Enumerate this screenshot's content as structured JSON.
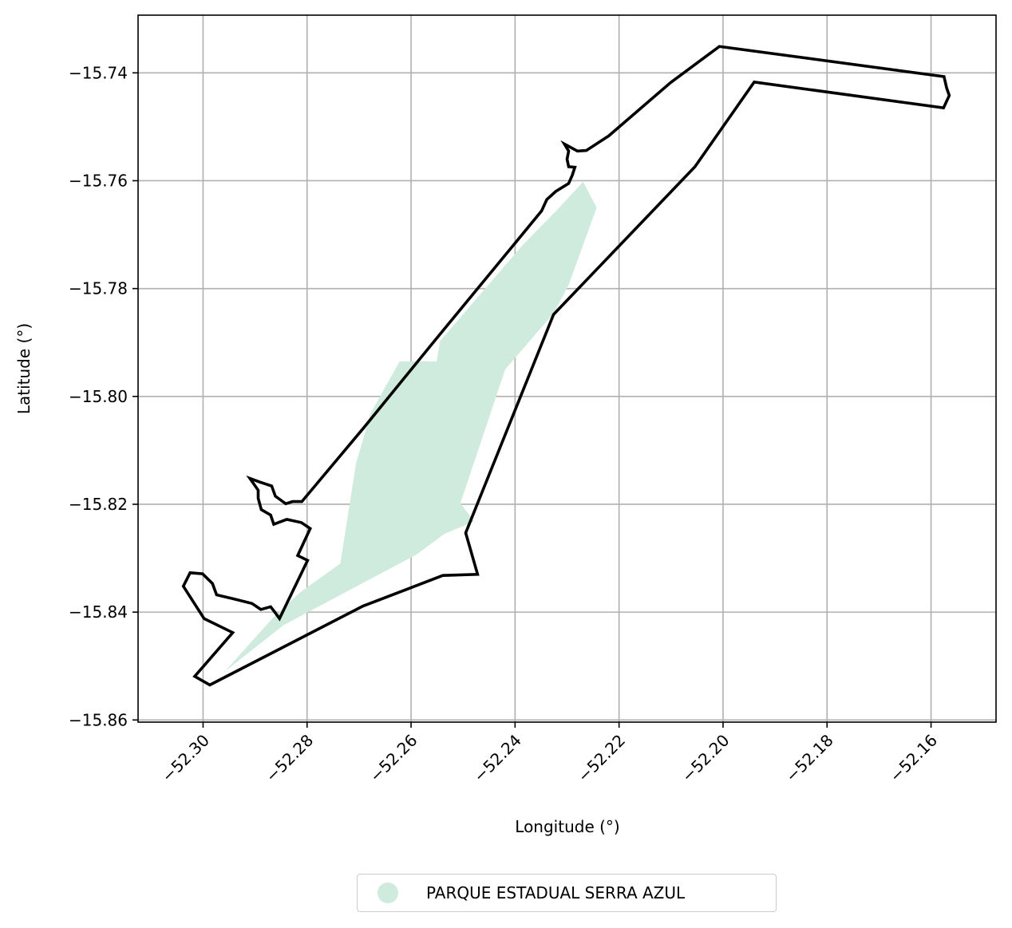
{
  "chart_data": {
    "type": "map",
    "xlabel": "Longitude (°)",
    "ylabel": "Latitude (°)",
    "xlim": [
      -52.3125,
      -52.1475
    ],
    "ylim": [
      -15.8604,
      -15.7293
    ],
    "xticks": [
      -52.3,
      -52.28,
      -52.26,
      -52.24,
      -52.22,
      -52.2,
      -52.18,
      -52.16
    ],
    "xtick_labels": [
      "−52.30",
      "−52.28",
      "−52.26",
      "−52.24",
      "−52.22",
      "−52.20",
      "−52.18",
      "−52.16"
    ],
    "yticks": [
      -15.74,
      -15.76,
      -15.78,
      -15.8,
      -15.82,
      -15.84,
      -15.86
    ],
    "ytick_labels": [
      "−15.74",
      "−15.76",
      "−15.78",
      "−15.80",
      "−15.82",
      "−15.84",
      "−15.86"
    ],
    "grid": true,
    "legend_position": "bottom-center",
    "outline_color": "#000000",
    "fill_color": "#cfebdd",
    "series": [
      {
        "name": "PARQUE ESTADUAL SERRA AZUL",
        "color": "#cfebdd",
        "polygon": [
          [
            -52.2958,
            -15.851
          ],
          [
            -52.2869,
            -15.8414
          ],
          [
            -52.2813,
            -15.8363
          ],
          [
            -52.2736,
            -15.831
          ],
          [
            -52.2706,
            -15.8125
          ],
          [
            -52.2678,
            -15.8032
          ],
          [
            -52.2622,
            -15.7935
          ],
          [
            -52.2551,
            -15.7935
          ],
          [
            -52.2544,
            -15.7897
          ],
          [
            -52.2387,
            -15.7721
          ],
          [
            -52.2317,
            -15.7652
          ],
          [
            -52.2269,
            -15.7602
          ],
          [
            -52.2243,
            -15.765
          ],
          [
            -52.2297,
            -15.7793
          ],
          [
            -52.2325,
            -15.7845
          ],
          [
            -52.2419,
            -15.795
          ],
          [
            -52.2505,
            -15.8198
          ],
          [
            -52.2479,
            -15.8232
          ],
          [
            -52.2536,
            -15.8255
          ],
          [
            -52.2589,
            -15.8293
          ],
          [
            -52.2845,
            -15.8424
          ],
          [
            -52.2958,
            -15.851
          ]
        ]
      }
    ],
    "outline": [
      [
        -52.3016,
        -15.8519
      ],
      [
        -52.2943,
        -15.8438
      ],
      [
        -52.2998,
        -15.8412
      ],
      [
        -52.3038,
        -15.8352
      ],
      [
        -52.3025,
        -15.8327
      ],
      [
        -52.3001,
        -15.8329
      ],
      [
        -52.2982,
        -15.8347
      ],
      [
        -52.2974,
        -15.8368
      ],
      [
        -52.2943,
        -15.8375
      ],
      [
        -52.2906,
        -15.8384
      ],
      [
        -52.2889,
        -15.8395
      ],
      [
        -52.287,
        -15.839
      ],
      [
        -52.2862,
        -15.84
      ],
      [
        -52.2853,
        -15.8412
      ],
      [
        -52.2799,
        -15.8304
      ],
      [
        -52.2818,
        -15.8295
      ],
      [
        -52.2794,
        -15.8245
      ],
      [
        -52.2811,
        -15.8234
      ],
      [
        -52.2839,
        -15.8228
      ],
      [
        -52.2864,
        -15.8237
      ],
      [
        -52.287,
        -15.822
      ],
      [
        -52.2888,
        -15.821
      ],
      [
        -52.2894,
        -15.8189
      ],
      [
        -52.2894,
        -15.8174
      ],
      [
        -52.291,
        -15.8152
      ],
      [
        -52.289,
        -15.8159
      ],
      [
        -52.2868,
        -15.8166
      ],
      [
        -52.2861,
        -15.8185
      ],
      [
        -52.2841,
        -15.8199
      ],
      [
        -52.2828,
        -15.8195
      ],
      [
        -52.281,
        -15.8195
      ],
      [
        -52.269,
        -15.8057
      ],
      [
        -52.2555,
        -15.7897
      ],
      [
        -52.2378,
        -15.769
      ],
      [
        -52.2349,
        -15.7656
      ],
      [
        -52.2339,
        -15.7635
      ],
      [
        -52.2322,
        -15.762
      ],
      [
        -52.2297,
        -15.7605
      ],
      [
        -52.229,
        -15.759
      ],
      [
        -52.2285,
        -15.7575
      ],
      [
        -52.2297,
        -15.7574
      ],
      [
        -52.23,
        -15.756
      ],
      [
        -52.2297,
        -15.7545
      ],
      [
        -52.2305,
        -15.7532
      ],
      [
        -52.228,
        -15.7545
      ],
      [
        -52.2263,
        -15.7544
      ],
      [
        -52.222,
        -15.7517
      ],
      [
        -52.2101,
        -15.7418
      ],
      [
        -52.2007,
        -15.7351
      ],
      [
        -52.1575,
        -15.7407
      ],
      [
        -52.157,
        -15.7428
      ],
      [
        -52.1565,
        -15.7442
      ],
      [
        -52.1576,
        -15.7465
      ],
      [
        -52.194,
        -15.7417
      ],
      [
        -52.2054,
        -15.7574
      ],
      [
        -52.2326,
        -15.7848
      ],
      [
        -52.2495,
        -15.8253
      ],
      [
        -52.2472,
        -15.833
      ],
      [
        -52.2539,
        -15.8332
      ],
      [
        -52.2693,
        -15.8389
      ],
      [
        -52.2987,
        -15.8535
      ],
      [
        -52.3016,
        -15.8519
      ]
    ]
  },
  "legend": {
    "label": "PARQUE ESTADUAL SERRA AZUL",
    "marker_color": "#cfebdd"
  }
}
